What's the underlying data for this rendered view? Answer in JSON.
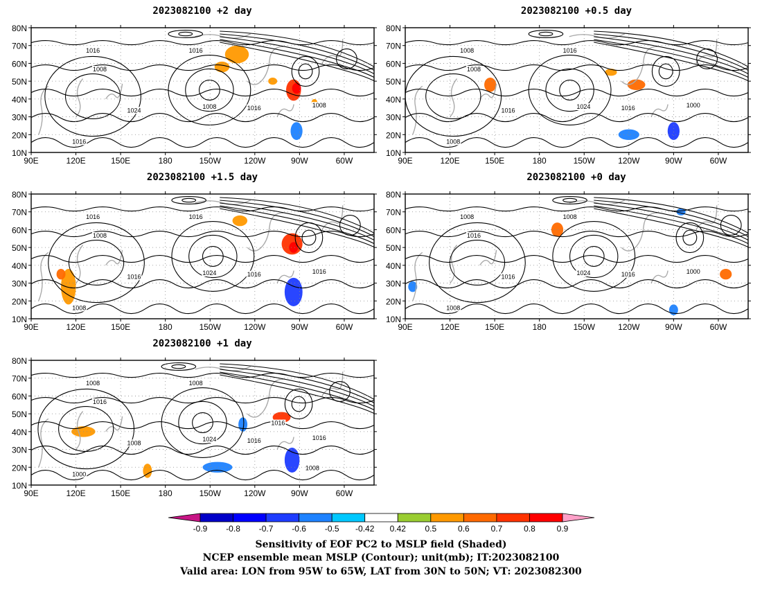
{
  "panels": [
    {
      "title": "2023082100 +2 day",
      "contour_labels": [
        "1016",
        "1008",
        "1016",
        "1024",
        "1008",
        "1016",
        "1008",
        "1016"
      ],
      "shaded": [
        {
          "lon": 228,
          "lat": 65,
          "rx": 8,
          "ry": 5,
          "value": 0.55
        },
        {
          "lon": 266,
          "lat": 45,
          "rx": 5,
          "ry": 6,
          "value": 0.72
        },
        {
          "lon": 268,
          "lat": 46,
          "rx": 3,
          "ry": 3,
          "value": 0.85
        },
        {
          "lon": 268,
          "lat": 22,
          "rx": 4,
          "ry": 5,
          "value": -0.58
        },
        {
          "lon": 218,
          "lat": 58,
          "rx": 5,
          "ry": 3,
          "value": 0.6
        },
        {
          "lon": 252,
          "lat": 50,
          "rx": 3,
          "ry": 2,
          "value": 0.6
        },
        {
          "lon": 280,
          "lat": 38,
          "rx": 2,
          "ry": 2,
          "value": 0.6
        }
      ]
    },
    {
      "title": "2023082100 +0.5 day",
      "contour_labels": [
        "1008",
        "1008",
        "1016",
        "1016",
        "1024",
        "1016",
        "1000",
        "1008"
      ],
      "shaded": [
        {
          "lon": 147,
          "lat": 48,
          "rx": 4,
          "ry": 4,
          "value": 0.65
        },
        {
          "lon": 245,
          "lat": 48,
          "rx": 6,
          "ry": 3,
          "value": 0.65
        },
        {
          "lon": 240,
          "lat": 20,
          "rx": 7,
          "ry": 3,
          "value": -0.55
        },
        {
          "lon": 270,
          "lat": 22,
          "rx": 4,
          "ry": 5,
          "value": -0.65
        },
        {
          "lon": 228,
          "lat": 55,
          "rx": 4,
          "ry": 2,
          "value": 0.55
        }
      ]
    },
    {
      "title": "2023082100 +1.5 day",
      "contour_labels": [
        "1016",
        "1008",
        "1016",
        "1016",
        "1024",
        "1016",
        "1016",
        "1008"
      ],
      "shaded": [
        {
          "lon": 265,
          "lat": 52,
          "rx": 7,
          "ry": 6,
          "value": 0.75
        },
        {
          "lon": 266,
          "lat": 50,
          "rx": 3,
          "ry": 3,
          "value": 0.88
        },
        {
          "lon": 266,
          "lat": 25,
          "rx": 6,
          "ry": 8,
          "value": -0.62
        },
        {
          "lon": 115,
          "lat": 28,
          "rx": 5,
          "ry": 10,
          "value": 0.55
        },
        {
          "lon": 110,
          "lat": 35,
          "rx": 3,
          "ry": 3,
          "value": 0.62
        },
        {
          "lon": 230,
          "lat": 65,
          "rx": 5,
          "ry": 3,
          "value": 0.55
        }
      ]
    },
    {
      "title": "2023082100 +0 day",
      "contour_labels": [
        "1008",
        "1016",
        "1008",
        "1016",
        "1024",
        "1016",
        "1000",
        "1008"
      ],
      "shaded": [
        {
          "lon": 192,
          "lat": 60,
          "rx": 4,
          "ry": 4,
          "value": 0.68
        },
        {
          "lon": 305,
          "lat": 35,
          "rx": 4,
          "ry": 3,
          "value": 0.68
        },
        {
          "lon": 270,
          "lat": 15,
          "rx": 3,
          "ry": 3,
          "value": -0.55
        },
        {
          "lon": 275,
          "lat": 70,
          "rx": 3,
          "ry": 2,
          "value": -0.55
        },
        {
          "lon": 95,
          "lat": 28,
          "rx": 3,
          "ry": 3,
          "value": -0.55
        }
      ]
    },
    {
      "title": "2023082100 +1 day",
      "contour_labels": [
        "1008",
        "1016",
        "1008",
        "1008",
        "1024",
        "1016",
        "1016",
        "1000",
        "1016",
        "1008"
      ],
      "shaded": [
        {
          "lon": 258,
          "lat": 48,
          "rx": 6,
          "ry": 3,
          "value": 0.75
        },
        {
          "lon": 265,
          "lat": 24,
          "rx": 5,
          "ry": 7,
          "value": -0.62
        },
        {
          "lon": 215,
          "lat": 20,
          "rx": 10,
          "ry": 3,
          "value": -0.55
        },
        {
          "lon": 232,
          "lat": 44,
          "rx": 3,
          "ry": 4,
          "value": -0.58
        },
        {
          "lon": 125,
          "lat": 40,
          "rx": 8,
          "ry": 3,
          "value": 0.55
        },
        {
          "lon": 168,
          "lat": 18,
          "rx": 3,
          "ry": 4,
          "value": 0.6
        }
      ]
    }
  ],
  "axes": {
    "lon_ticks": [
      "90E",
      "120E",
      "150E",
      "180",
      "150W",
      "120W",
      "90W",
      "60W"
    ],
    "lon_values": [
      90,
      120,
      150,
      180,
      210,
      240,
      270,
      300
    ],
    "lat_ticks": [
      "10N",
      "20N",
      "30N",
      "40N",
      "50N",
      "60N",
      "70N",
      "80N"
    ],
    "lat_values": [
      10,
      20,
      30,
      40,
      50,
      60,
      70,
      80
    ],
    "lon_range": [
      90,
      320
    ],
    "lat_range": [
      10,
      80
    ],
    "grid": "dotted"
  },
  "colorbar": {
    "labels": [
      "-0.9",
      "-0.8",
      "-0.7",
      "-0.6",
      "-0.5",
      "-0.42",
      "0.42",
      "0.5",
      "0.6",
      "0.7",
      "0.8",
      "0.9"
    ],
    "colors": [
      "#c71585",
      "#0000c8",
      "#0000ff",
      "#1e3cff",
      "#1e82ff",
      "#00c8ff",
      "#ffffff",
      "#9acd32",
      "#ff9900",
      "#ff6a00",
      "#ff3300",
      "#ff0000",
      "#ffa0c8"
    ]
  },
  "footer": {
    "line1": "Sensitivity of EOF PC2 to MSLP field (Shaded)",
    "line2": "NCEP ensemble mean MSLP (Contour); unit(mb); IT:2023082100",
    "line3": "Valid area: LON from 95W to 65W, LAT from 30N to 50N; VT: 2023082300"
  }
}
